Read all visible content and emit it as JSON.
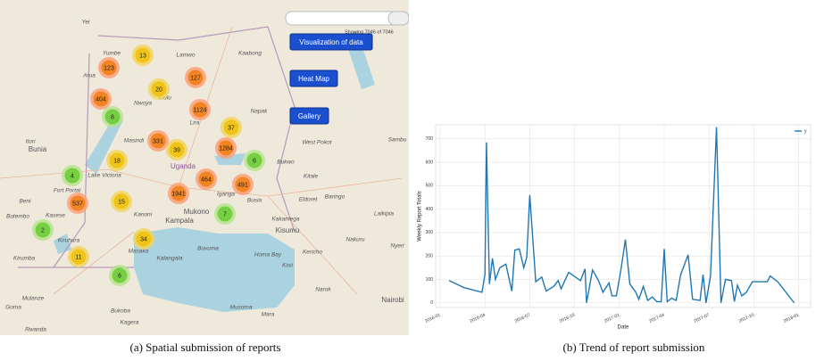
{
  "map": {
    "search_status": "Showing 7046 of 7046",
    "buttons": [
      "Visualization of data",
      "Heat Map",
      "Gallery"
    ],
    "places": [
      "Yei",
      "Yumbe",
      "Arua",
      "Lamwo",
      "Kaabong",
      "Gulu",
      "Nwoya",
      "Napak",
      "Lira",
      "Ituri",
      "Bunia",
      "Masindi",
      "Uganda",
      "West Pokot",
      "Bukwo",
      "Kitale",
      "Lake Victoria",
      "Beni",
      "Fort Portal",
      "Baringo",
      "Eldoret",
      "Iganga",
      "Busia",
      "Kasese",
      "Mukono",
      "Kampala",
      "Kanoni",
      "Butembo",
      "Kakamega",
      "Kisumu",
      "Laikipia",
      "Kiruhura",
      "Masaka",
      "Kalangala",
      "Buvuma",
      "Homa Bay",
      "Nakuru",
      "Kericho",
      "Nyeri",
      "Kisii",
      "Kirumba",
      "Bukoba",
      "Narok",
      "Musoma",
      "Mara",
      "Kagera",
      "Rwanda",
      "Goma",
      "Nairobi",
      "Mulanze",
      "Sambu"
    ],
    "clusters": [
      13,
      123,
      127,
      20,
      404,
      8,
      1124,
      37,
      331,
      39,
      1284,
      18,
      6,
      4,
      464,
      491,
      1941,
      15,
      537,
      7,
      2,
      34,
      11,
      6
    ]
  },
  "captions": [
    "(a) Spatial submission of reports",
    "(b) Trend of report submission"
  ],
  "chart_data": {
    "type": "line",
    "xlabel": "Date",
    "ylabel": "Weekly Report Totals",
    "x": [
      0.6,
      1.6,
      2.8,
      3.0,
      3.1,
      3.3,
      3.5,
      3.7,
      4.0,
      4.4,
      4.8,
      5.0,
      5.3,
      5.6,
      5.8,
      6.0,
      6.4,
      6.8,
      7.1,
      7.6,
      7.9,
      8.1,
      8.6,
      9.4,
      9.7,
      9.8,
      10.2,
      10.6,
      10.9,
      11.3,
      11.5,
      11.8,
      12.1,
      12.4,
      12.7,
      13.1,
      13.3,
      13.6,
      13.9,
      14.2,
      14.5,
      14.8,
      15.0,
      15.2,
      15.5,
      15.8,
      16.1,
      16.6,
      16.9,
      17.4,
      17.6,
      17.8,
      18.1,
      18.5,
      18.8,
      19.1,
      19.5,
      19.7,
      19.9,
      20.2,
      20.5,
      20.9,
      21.6,
      21.9,
      22.1,
      22.6,
      23.7
    ],
    "series": [
      {
        "name": "y",
        "color": "#1f77b4",
        "values": [
          95,
          65,
          45,
          120,
          685,
          80,
          190,
          100,
          150,
          165,
          50,
          225,
          230,
          150,
          195,
          460,
          90,
          110,
          50,
          70,
          95,
          60,
          130,
          95,
          145,
          0,
          140,
          95,
          45,
          85,
          30,
          30,
          140,
          270,
          80,
          45,
          15,
          70,
          10,
          25,
          5,
          5,
          230,
          5,
          20,
          10,
          120,
          205,
          15,
          10,
          120,
          0,
          115,
          750,
          0,
          100,
          95,
          5,
          75,
          30,
          45,
          90,
          90,
          90,
          115,
          90,
          0
        ]
      }
    ],
    "xlim": [
      -0.3,
      24.8
    ],
    "xticks": [
      {
        "value": 0,
        "label": "2016-01"
      },
      {
        "value": 3,
        "label": "2016-04"
      },
      {
        "value": 6,
        "label": "2016-07"
      },
      {
        "value": 9,
        "label": "2016-10"
      },
      {
        "value": 12,
        "label": "2017-01"
      },
      {
        "value": 15,
        "label": "2017-04"
      },
      {
        "value": 18,
        "label": "2017-07"
      },
      {
        "value": 21,
        "label": "2017-10"
      },
      {
        "value": 24,
        "label": "2018-01"
      }
    ],
    "ylim": [
      -20,
      760
    ],
    "yticks": [
      0,
      100,
      200,
      300,
      400,
      500,
      600,
      700
    ],
    "grid": true,
    "legend": "upper right"
  }
}
